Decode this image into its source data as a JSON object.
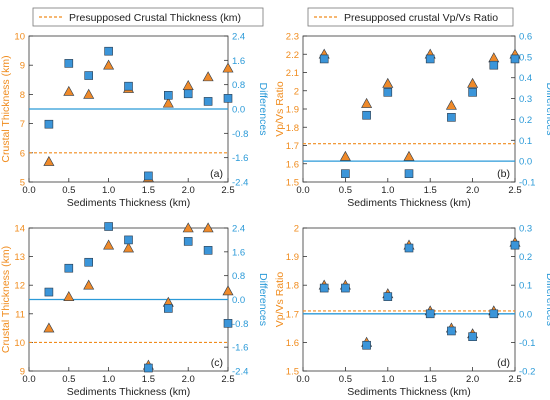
{
  "chart_data": [
    {
      "type": "scatter",
      "panel_label": "(a)",
      "legend": "Presupposed Crustal Thickness (km)",
      "xlabel": "Sediments Thickness (km)",
      "ylabel": "Crustal Thickness (km)",
      "y2label": "Differences",
      "xlim": [
        0.0,
        2.5
      ],
      "ylim": [
        5,
        10
      ],
      "y2lim": [
        -2.4,
        2.4
      ],
      "x_ticks": [
        "0.0",
        "0.5",
        "1.0",
        "1.5",
        "2.0",
        "2.5"
      ],
      "x_tick_values": [
        0.0,
        0.5,
        1.0,
        1.5,
        2.0,
        2.5
      ],
      "y_ticks": [
        5,
        6,
        7,
        8,
        9,
        10
      ],
      "y2_ticks": [
        -2.4,
        -1.6,
        -0.8,
        0.0,
        0.8,
        1.6,
        2.4
      ],
      "y2_tick_labels": [
        "-2.4",
        "-1.6",
        "-0.8",
        "0.0",
        "0.8",
        "1.6",
        "2.4"
      ],
      "hline_left": 6.0,
      "hline_right": 0.0,
      "legend_position": "top",
      "series": [
        {
          "marker": "triangle",
          "axis": "left",
          "x": [
            0.25,
            0.5,
            0.75,
            1.0,
            1.25,
            1.5,
            1.75,
            2.0,
            2.25,
            2.5
          ],
          "values": [
            5.7,
            8.1,
            8.0,
            9.0,
            8.2,
            5.15,
            7.7,
            8.3,
            8.6,
            8.9
          ]
        },
        {
          "marker": "square",
          "axis": "right",
          "x": [
            0.25,
            0.5,
            0.75,
            1.0,
            1.25,
            1.5,
            1.75,
            2.0,
            2.25,
            2.5
          ],
          "values": [
            -0.5,
            1.5,
            1.1,
            1.9,
            0.75,
            -2.2,
            0.45,
            0.5,
            0.25,
            0.35
          ]
        }
      ]
    },
    {
      "type": "scatter",
      "panel_label": "(b)",
      "legend": "Presupposed crustal Vp/Vs Ratio",
      "xlabel": "Sediments Thickness (km)",
      "ylabel": "Vp/Vs Ratio",
      "y2label": "Differences",
      "xlim": [
        0.0,
        2.5
      ],
      "ylim": [
        1.5,
        2.3
      ],
      "y2lim": [
        -0.1,
        0.6
      ],
      "x_ticks": [
        "0.0",
        "0.5",
        "1.0",
        "1.5",
        "2.0",
        "2.5"
      ],
      "x_tick_values": [
        0.0,
        0.5,
        1.0,
        1.5,
        2.0,
        2.5
      ],
      "y_ticks": [
        1.5,
        1.6,
        1.7,
        1.8,
        1.9,
        2.0,
        2.1,
        2.2,
        2.3
      ],
      "y2_ticks": [
        -0.1,
        0.0,
        0.1,
        0.2,
        0.3,
        0.4,
        0.5,
        0.6
      ],
      "y2_tick_labels": [
        "-0.1",
        "0.0",
        "0.1",
        "0.2",
        "0.3",
        "0.4",
        "0.5",
        "0.6"
      ],
      "hline_left": 1.71,
      "hline_right": 0.0,
      "legend_position": "top",
      "series": [
        {
          "marker": "triangle",
          "axis": "left",
          "x": [
            0.25,
            0.5,
            0.75,
            1.0,
            1.25,
            1.5,
            1.75,
            2.0,
            2.25,
            2.5
          ],
          "values": [
            2.2,
            1.64,
            1.93,
            2.04,
            1.64,
            2.2,
            1.92,
            2.04,
            2.18,
            2.2
          ]
        },
        {
          "marker": "square",
          "axis": "right",
          "x": [
            0.25,
            0.5,
            0.75,
            1.0,
            1.25,
            1.5,
            1.75,
            2.0,
            2.25,
            2.5
          ],
          "values": [
            0.49,
            -0.06,
            0.22,
            0.33,
            -0.06,
            0.49,
            0.21,
            0.33,
            0.46,
            0.49
          ]
        }
      ]
    },
    {
      "type": "scatter",
      "panel_label": "(c)",
      "legend": "",
      "xlabel": "Sediments Thickness (km)",
      "ylabel": "Crustal Thickness (km)",
      "y2label": "Differences",
      "xlim": [
        0.0,
        2.5
      ],
      "ylim": [
        9,
        14
      ],
      "y2lim": [
        -2.4,
        2.4
      ],
      "x_ticks": [
        "0.0",
        "0.5",
        "1.0",
        "1.5",
        "2.0",
        "2.5"
      ],
      "x_tick_values": [
        0.0,
        0.5,
        1.0,
        1.5,
        2.0,
        2.5
      ],
      "y_ticks": [
        9,
        10,
        11,
        12,
        13,
        14
      ],
      "y2_ticks": [
        -2.4,
        -1.6,
        -0.8,
        0.0,
        0.8,
        1.6,
        2.4
      ],
      "y2_tick_labels": [
        "-2.4",
        "-1.6",
        "-0.8",
        "0.0",
        "0.8",
        "1.6",
        "2.4"
      ],
      "hline_left": 10.0,
      "hline_right": 0.0,
      "legend_position": "none",
      "series": [
        {
          "marker": "triangle",
          "axis": "left",
          "x": [
            0.25,
            0.5,
            0.75,
            1.0,
            1.25,
            1.5,
            1.75,
            2.0,
            2.25,
            2.5
          ],
          "values": [
            10.5,
            11.6,
            12.0,
            13.4,
            13.3,
            9.2,
            11.4,
            14.0,
            14.0,
            11.8
          ]
        },
        {
          "marker": "square",
          "axis": "right",
          "x": [
            0.25,
            0.5,
            0.75,
            1.0,
            1.25,
            1.5,
            1.75,
            2.0,
            2.25,
            2.5
          ],
          "values": [
            0.25,
            1.05,
            1.25,
            2.45,
            2.0,
            -2.3,
            -0.3,
            1.95,
            1.65,
            -0.8
          ]
        }
      ]
    },
    {
      "type": "scatter",
      "panel_label": "(d)",
      "legend": "",
      "xlabel": "Sediments Thickness (km)",
      "ylabel": "Vp/Vs Ratio",
      "y2label": "Differences",
      "xlim": [
        0.0,
        2.5
      ],
      "ylim": [
        1.5,
        2.0
      ],
      "y2lim": [
        -0.2,
        0.3
      ],
      "x_ticks": [
        "0.0",
        "0.5",
        "1.0",
        "1.5",
        "2.0",
        "2.5"
      ],
      "x_tick_values": [
        0.0,
        0.5,
        1.0,
        1.5,
        2.0,
        2.5
      ],
      "y_ticks": [
        1.5,
        1.6,
        1.7,
        1.8,
        1.9,
        2.0
      ],
      "y2_ticks": [
        -0.2,
        -0.1,
        0.0,
        0.1,
        0.2,
        0.3
      ],
      "y2_tick_labels": [
        "-0.2",
        "-0.1",
        "0.0",
        "0.1",
        "0.2",
        "0.3"
      ],
      "hline_left": 1.71,
      "hline_right": 0.0,
      "legend_position": "none",
      "series": [
        {
          "marker": "triangle",
          "axis": "left",
          "x": [
            0.25,
            0.5,
            0.75,
            1.0,
            1.25,
            1.5,
            1.75,
            2.0,
            2.25,
            2.5
          ],
          "values": [
            1.8,
            1.8,
            1.6,
            1.77,
            1.94,
            1.71,
            1.65,
            1.63,
            1.71,
            1.95
          ]
        },
        {
          "marker": "square",
          "axis": "right",
          "x": [
            0.25,
            0.5,
            0.75,
            1.0,
            1.25,
            1.5,
            1.75,
            2.0,
            2.25,
            2.5
          ],
          "values": [
            0.09,
            0.09,
            -0.11,
            0.06,
            0.23,
            0.0,
            -0.06,
            -0.08,
            0.0,
            0.24
          ]
        }
      ]
    }
  ],
  "colors": {
    "left_axis": "#f08c1e",
    "right_axis": "#2b9ad8",
    "triangle_fill": "#ef8a2a",
    "square_fill": "#3b95d9",
    "marker_stroke": "#2b3a4a",
    "axis": "#333333"
  }
}
